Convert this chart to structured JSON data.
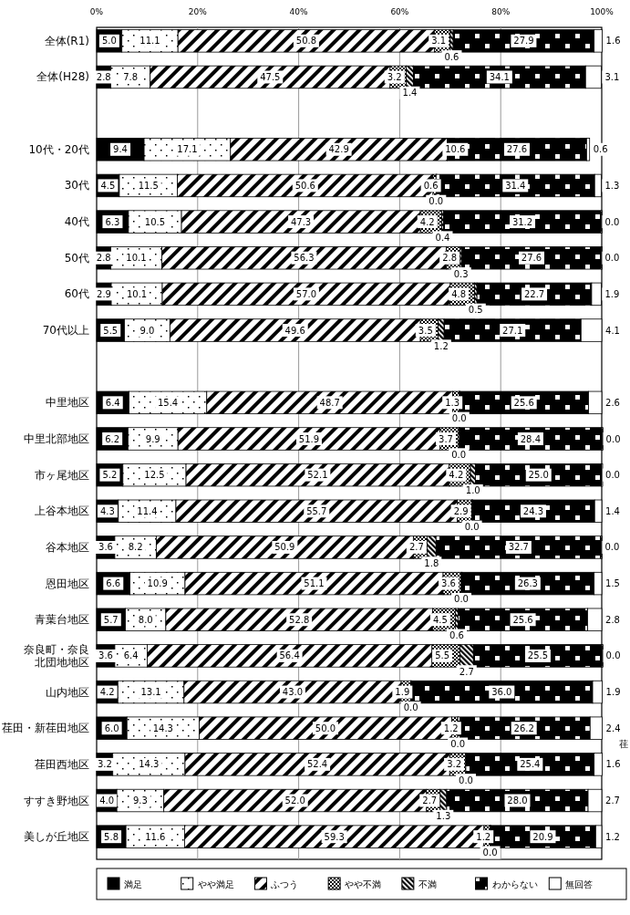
{
  "chart_data": {
    "type": "bar",
    "orientation": "horizontal",
    "stacked": true,
    "grid": "x",
    "legend": "bottom",
    "categories": [
      "全体(R1)",
      "全体(H28)",
      null,
      "10代・20代",
      "30代",
      "40代",
      "50代",
      "60代",
      "70代以上",
      null,
      "中里地区",
      "中里北部地区",
      "市ヶ尾地区",
      "上谷本地区",
      "谷本地区",
      "恩田地区",
      "青葉台地区",
      "奈良町・奈良北団地地区",
      "山内地区",
      "荏田・新荏田地区",
      "荏田西地区",
      "すすき野地区",
      "美しが丘地区"
    ],
    "xlim": [
      0,
      100
    ],
    "xticks": [
      {
        "value": 0,
        "label": "0%"
      },
      {
        "value": 20,
        "label": "20%"
      },
      {
        "value": 40,
        "label": "40%"
      },
      {
        "value": 60,
        "label": "60%"
      },
      {
        "value": 80,
        "label": "80%"
      },
      {
        "value": 100,
        "label": "100%"
      }
    ],
    "series": [
      {
        "name": "満足",
        "color": "#000000",
        "values": [
          5.0,
          2.8,
          null,
          9.4,
          4.5,
          6.3,
          2.8,
          2.9,
          5.5,
          null,
          6.4,
          6.2,
          5.2,
          4.3,
          3.6,
          6.6,
          5.7,
          3.6,
          4.2,
          6.0,
          3.2,
          4.0,
          5.8
        ],
        "value_labels": [
          "5.0",
          "2.8",
          null,
          "9.4",
          "4.5",
          "6.3",
          "2.8",
          "2.9",
          "5.5",
          null,
          "6.4",
          "6.2",
          "5.2",
          "4.3",
          "3.6",
          "6.6",
          "5.7",
          "3.6",
          "4.2",
          "6.0",
          "3.2",
          "4.0",
          "5.8"
        ]
      },
      {
        "name": "やや満足",
        "color": "#000000",
        "values": [
          11.1,
          7.8,
          null,
          17.1,
          11.5,
          10.5,
          10.1,
          10.1,
          9.0,
          null,
          15.4,
          9.9,
          12.5,
          11.4,
          8.2,
          10.9,
          8.0,
          6.4,
          13.1,
          14.3,
          14.3,
          9.3,
          11.6
        ],
        "value_labels": [
          "11.1",
          "7.8",
          null,
          "17.1",
          "11.5",
          "10.5",
          "10.1",
          "10.1",
          "9.0",
          null,
          "15.4",
          "9.9",
          "12.5",
          "11.4",
          "8.2",
          "10.9",
          "8.0",
          "6.4",
          "13.1",
          "14.3",
          "14.3",
          "9.3",
          "11.6"
        ]
      },
      {
        "name": "ふつう",
        "color": "#000000",
        "values": [
          50.8,
          47.5,
          null,
          42.9,
          50.6,
          47.3,
          56.3,
          57.0,
          49.6,
          null,
          48.7,
          51.9,
          52.1,
          55.7,
          50.9,
          51.1,
          52.8,
          56.4,
          43.0,
          50.0,
          52.4,
          52.0,
          59.3
        ],
        "value_labels": [
          "50.8",
          "47.5",
          null,
          "42.9",
          "50.6",
          "47.3",
          "56.3",
          "57.0",
          "49.6",
          null,
          "48.7",
          "51.9",
          "52.1",
          "55.7",
          "50.9",
          "51.1",
          "52.8",
          "56.4",
          "43.0",
          "50.0",
          "52.4",
          "52.0",
          "59.3"
        ]
      },
      {
        "name": "やや不満",
        "color": "#000000",
        "values": [
          3.1,
          3.2,
          null,
          null,
          0.6,
          4.2,
          2.8,
          4.8,
          3.5,
          null,
          1.3,
          3.7,
          4.2,
          2.9,
          2.7,
          3.6,
          4.5,
          5.5,
          1.9,
          1.2,
          3.2,
          2.7,
          1.2
        ],
        "value_labels": [
          "3.1",
          "3.2",
          null,
          null,
          "0.6",
          "4.2",
          "2.8",
          "4.8",
          "3.5",
          null,
          "1.3",
          "3.7",
          "4.2",
          "2.9",
          "2.7",
          "3.6",
          "4.5",
          "5.5",
          "1.9",
          "1.2",
          "3.2",
          "2.7",
          "1.2"
        ]
      },
      {
        "name": "不満",
        "color": "#000000",
        "values": [
          0.6,
          1.4,
          null,
          null,
          0.0,
          0.4,
          0.3,
          0.5,
          1.2,
          null,
          0.0,
          0.0,
          1.0,
          0.0,
          1.8,
          0.0,
          0.6,
          2.7,
          0.0,
          0.0,
          0.0,
          1.3,
          0.0
        ],
        "value_labels": [
          "0.6",
          "1.4",
          null,
          null,
          "0.0",
          "0.4",
          "0.3",
          "0.5",
          "1.2",
          null,
          "0.0",
          "0.0",
          "1.0",
          "0.0",
          "1.8",
          "0.0",
          "0.6",
          "2.7",
          "0.0",
          "0.0",
          "0.0",
          "1.3",
          "0.0"
        ]
      },
      {
        "name": "わからない",
        "color": "#000000",
        "values": [
          27.9,
          34.1,
          null,
          27.6,
          31.4,
          31.2,
          27.6,
          22.7,
          27.1,
          null,
          25.6,
          28.4,
          25.0,
          24.3,
          32.7,
          26.3,
          25.6,
          25.5,
          36.0,
          26.2,
          25.4,
          28.0,
          20.9
        ],
        "value_labels": [
          "27.9",
          "34.1",
          null,
          "27.6",
          "31.4",
          "31.2",
          "27.6",
          "22.7",
          "27.1",
          null,
          "25.6",
          "28.4",
          "25.0",
          "24.3",
          "32.7",
          "26.3",
          "25.6",
          "25.5",
          "36.0",
          "26.2",
          "25.4",
          "28.0",
          "20.9"
        ]
      },
      {
        "name": "無回答",
        "color": "#ffffff",
        "values": [
          1.6,
          3.1,
          null,
          0.6,
          1.3,
          0.0,
          0.0,
          1.9,
          4.1,
          null,
          2.6,
          0.0,
          0.0,
          1.4,
          0.0,
          1.5,
          2.8,
          0.0,
          1.9,
          2.4,
          1.6,
          2.7,
          1.2
        ],
        "value_labels": [
          "1.6",
          "3.1",
          null,
          "0.6",
          "1.3",
          "0.0",
          "0.0",
          "1.9",
          "4.1",
          null,
          "2.6",
          "0.0",
          "0.0",
          "1.4",
          "0.0",
          "1.5",
          "2.8",
          "0.0",
          "1.9",
          "2.4",
          "1.6",
          "2.7",
          "1.2"
        ]
      }
    ],
    "annotations": [
      {
        "text": "10.6",
        "x": 71,
        "y": "10代・20代"
      },
      "荏"
    ]
  }
}
